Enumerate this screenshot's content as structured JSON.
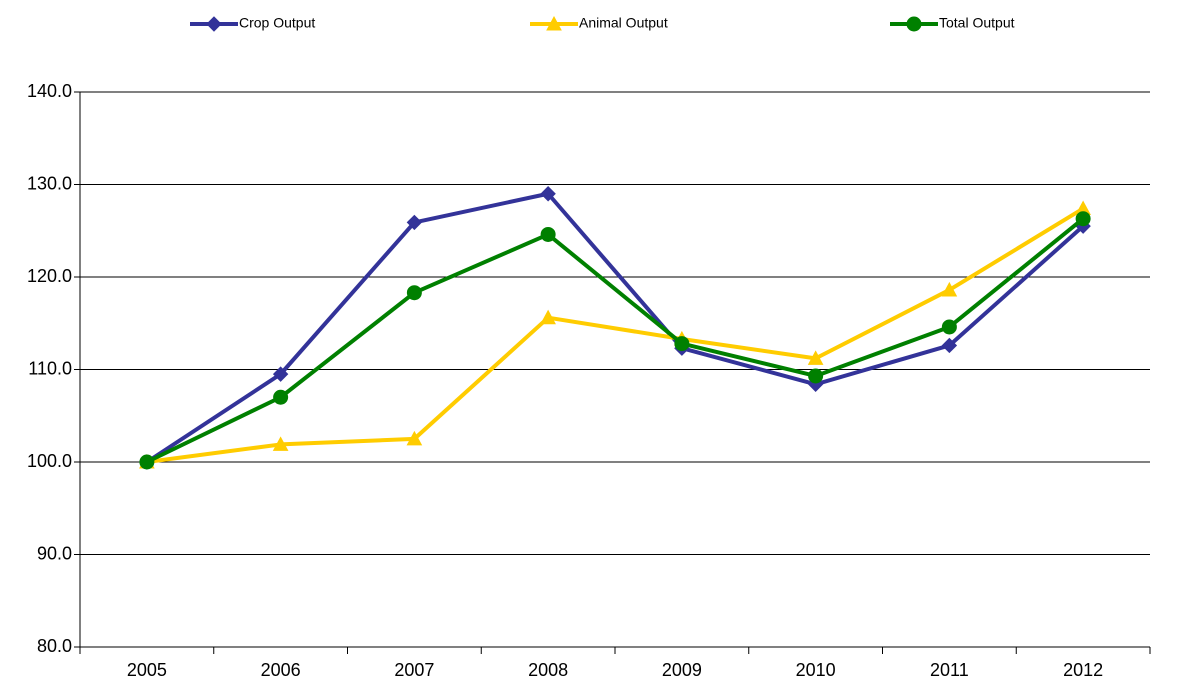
{
  "chart_data": {
    "type": "line",
    "categories": [
      "2005",
      "2006",
      "2007",
      "2008",
      "2009",
      "2010",
      "2011",
      "2012"
    ],
    "series": [
      {
        "name": "Crop Output",
        "color": "#333399",
        "marker": "diamond",
        "values": [
          100.0,
          109.5,
          125.9,
          129.0,
          112.3,
          108.4,
          112.6,
          125.5
        ]
      },
      {
        "name": "Animal Output",
        "color": "#ffcc00",
        "marker": "triangle",
        "values": [
          100.0,
          101.9,
          102.5,
          115.6,
          113.3,
          111.2,
          118.6,
          127.4
        ]
      },
      {
        "name": "Total Output",
        "color": "#008000",
        "marker": "circle",
        "values": [
          100.0,
          107.0,
          118.3,
          124.6,
          112.8,
          109.3,
          114.6,
          126.3
        ]
      }
    ],
    "ylim": [
      80,
      140
    ],
    "yticks": [
      {
        "value": 80,
        "label": "80.0"
      },
      {
        "value": 90,
        "label": "90.0"
      },
      {
        "value": 100,
        "label": "100.0"
      },
      {
        "value": 110,
        "label": "110.0"
      },
      {
        "value": 120,
        "label": "120.0"
      },
      {
        "value": 130,
        "label": "130.0"
      },
      {
        "value": 140,
        "label": "140.0"
      }
    ],
    "grid": true,
    "legend": "top"
  }
}
